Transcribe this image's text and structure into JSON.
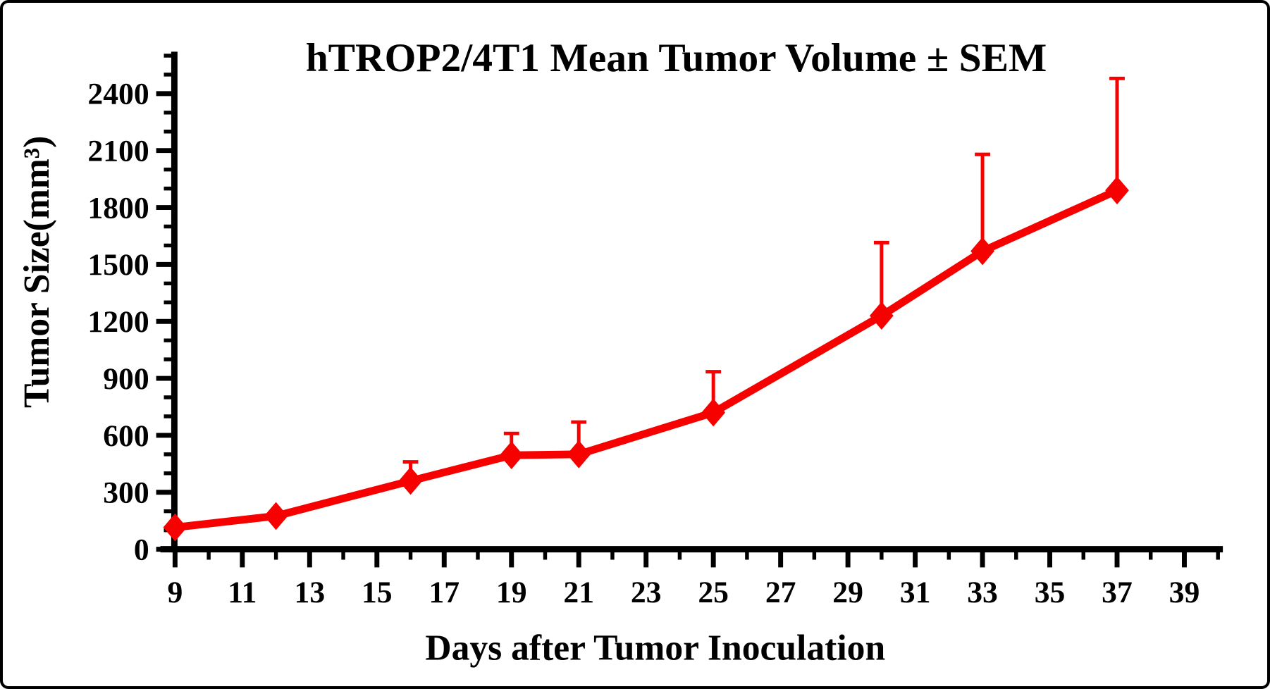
{
  "frame": {
    "background_color": "#ffffff",
    "border_color": "#000000"
  },
  "chart_data": {
    "type": "line",
    "title": "hTROP2/4T1 Mean Tumor Volume ± SEM",
    "xlabel": "Days after Tumor Inoculation",
    "ylabel": "Tumor Size(mm³)",
    "x": [
      9,
      12,
      16,
      19,
      21,
      25,
      30,
      33,
      37
    ],
    "series": [
      {
        "name": "hTROP2/4T1 mean tumor volume",
        "color": "#f70000",
        "marker": "diamond",
        "values": [
          115,
          175,
          360,
          495,
          500,
          720,
          1230,
          1570,
          1890
        ],
        "sem_upper": [
          null,
          null,
          100,
          115,
          170,
          215,
          385,
          510,
          590
        ]
      }
    ],
    "error_bars": "upper_only",
    "xlim": [
      9,
      40
    ],
    "ylim": [
      0,
      2600
    ],
    "x_tick_step": 1,
    "x_tick_labels": [
      9,
      11,
      13,
      15,
      17,
      19,
      21,
      23,
      25,
      27,
      29,
      31,
      33,
      35,
      37,
      39
    ],
    "y_minor_step": 100,
    "y_major_step": 300,
    "y_tick_labels": [
      0,
      300,
      600,
      900,
      1200,
      1500,
      1800,
      2100,
      2400
    ],
    "grid": false,
    "legend": false,
    "axis_color": "#000000",
    "text_color": "#000000"
  }
}
